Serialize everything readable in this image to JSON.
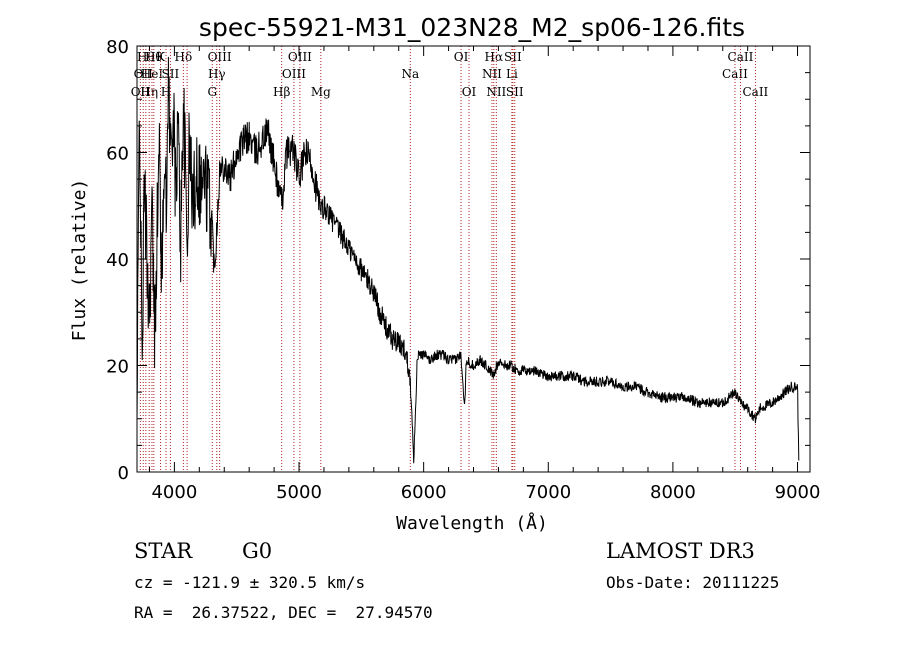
{
  "chart_data": {
    "type": "line",
    "title": "spec-55921-M31_023N28_M2_sp06-126.fits",
    "xlabel": "Wavelength (Å)",
    "ylabel": "Flux (relative)",
    "xlim": [
      3700,
      9100
    ],
    "ylim": [
      0,
      80
    ],
    "xticks": [
      4000,
      5000,
      6000,
      7000,
      8000,
      9000
    ],
    "yticks": [
      0,
      20,
      40,
      60,
      80
    ],
    "series": [
      {
        "name": "flux",
        "x": [
          3700,
          3720,
          3740,
          3760,
          3780,
          3800,
          3820,
          3840,
          3860,
          3880,
          3900,
          3920,
          3935,
          3950,
          3968,
          3990,
          4010,
          4030,
          4050,
          4070,
          4090,
          4102,
          4120,
          4150,
          4180,
          4210,
          4240,
          4270,
          4300,
          4320,
          4340,
          4360,
          4400,
          4450,
          4500,
          4550,
          4600,
          4650,
          4700,
          4750,
          4800,
          4861,
          4900,
          4950,
          5000,
          5050,
          5100,
          5150,
          5175,
          5200,
          5250,
          5300,
          5350,
          5400,
          5450,
          5500,
          5550,
          5600,
          5650,
          5700,
          5750,
          5800,
          5850,
          5893,
          5910,
          5920,
          5950,
          6000,
          6050,
          6100,
          6150,
          6200,
          6250,
          6300,
          6330,
          6340,
          6400,
          6450,
          6500,
          6563,
          6600,
          6650,
          6700,
          6750,
          6800,
          6900,
          7000,
          7100,
          7200,
          7300,
          7400,
          7500,
          7600,
          7700,
          7800,
          7900,
          8000,
          8100,
          8200,
          8300,
          8400,
          8498,
          8542,
          8600,
          8662,
          8700,
          8800,
          8850,
          8900,
          8950,
          9000,
          9010
        ],
        "values": [
          8,
          72,
          20,
          55,
          40,
          30,
          50,
          25,
          45,
          60,
          35,
          65,
          45,
          75,
          60,
          68,
          52,
          66,
          42,
          70,
          55,
          42,
          62,
          50,
          58,
          54,
          55,
          52,
          48,
          38,
          46,
          56,
          58,
          55,
          60,
          62,
          63,
          60,
          62,
          64,
          58,
          50,
          60,
          61,
          55,
          60,
          58,
          52,
          48,
          50,
          48,
          46,
          44,
          42,
          40,
          38,
          36,
          34,
          30,
          27,
          25,
          24,
          23,
          18,
          8,
          2,
          22,
          22,
          21,
          22,
          22,
          21,
          21,
          22,
          12,
          21,
          20,
          21,
          20,
          18,
          21,
          20,
          20,
          19,
          19,
          19,
          18,
          18,
          18,
          17,
          17,
          17,
          16,
          16,
          15,
          14,
          14,
          14,
          13,
          13,
          13,
          15,
          13,
          12,
          10,
          12,
          13,
          14,
          15,
          16,
          16,
          2
        ]
      }
    ],
    "lines": [
      {
        "wavelength": 3727,
        "label": "OII",
        "row": 3
      },
      {
        "wavelength": 3750,
        "label": "OII",
        "row": 2
      },
      {
        "wavelength": 3771,
        "label": "Hθ",
        "row": 1
      },
      {
        "wavelength": 3798,
        "label": "Hη",
        "row": 3
      },
      {
        "wavelength": 3820,
        "label": "HeI",
        "row": 2
      },
      {
        "wavelength": 3835,
        "label": "Hθ",
        "row": 1
      },
      {
        "wavelength": 3889,
        "label": "K",
        "row": 1
      },
      {
        "wavelength": 3933,
        "label": "H",
        "row": 3
      },
      {
        "wavelength": 3968,
        "label": "SII",
        "row": 2
      },
      {
        "wavelength": 4072,
        "label": "Hδ",
        "row": 1
      },
      {
        "wavelength": 4102,
        "label": "",
        "row": 0
      },
      {
        "wavelength": 4304,
        "label": "G",
        "row": 3
      },
      {
        "wavelength": 4340,
        "label": "Hγ",
        "row": 2
      },
      {
        "wavelength": 4363,
        "label": "OIII",
        "row": 1
      },
      {
        "wavelength": 4861,
        "label": "Hβ",
        "row": 3
      },
      {
        "wavelength": 4959,
        "label": "OIII",
        "row": 2
      },
      {
        "wavelength": 5007,
        "label": "OIII",
        "row": 1
      },
      {
        "wavelength": 5175,
        "label": "Mg",
        "row": 3
      },
      {
        "wavelength": 5893,
        "label": "Na",
        "row": 2
      },
      {
        "wavelength": 6300,
        "label": "OI",
        "row": 1
      },
      {
        "wavelength": 6364,
        "label": "OI",
        "row": 3
      },
      {
        "wavelength": 6548,
        "label": "NII",
        "row": 2
      },
      {
        "wavelength": 6563,
        "label": "Hα",
        "row": 1
      },
      {
        "wavelength": 6583,
        "label": "NII",
        "row": 3
      },
      {
        "wavelength": 6708,
        "label": "Li",
        "row": 2
      },
      {
        "wavelength": 6716,
        "label": "SII",
        "row": 1
      },
      {
        "wavelength": 6731,
        "label": "SII",
        "row": 3
      },
      {
        "wavelength": 8498,
        "label": "CaII",
        "row": 2
      },
      {
        "wavelength": 8542,
        "label": "CaII",
        "row": 1
      },
      {
        "wavelength": 8662,
        "label": "CaII",
        "row": 3
      }
    ]
  },
  "info": {
    "class_label": "STAR",
    "subclass": "G0",
    "survey": "LAMOST DR3",
    "cz": "cz = -121.9 ± 320.5 km/s",
    "obs_date": "Obs-Date: 20111225",
    "coords": "RA =  26.37522, DEC =  27.94570"
  },
  "style": {
    "line_color": "#000000",
    "marker_color": "#b22222"
  }
}
